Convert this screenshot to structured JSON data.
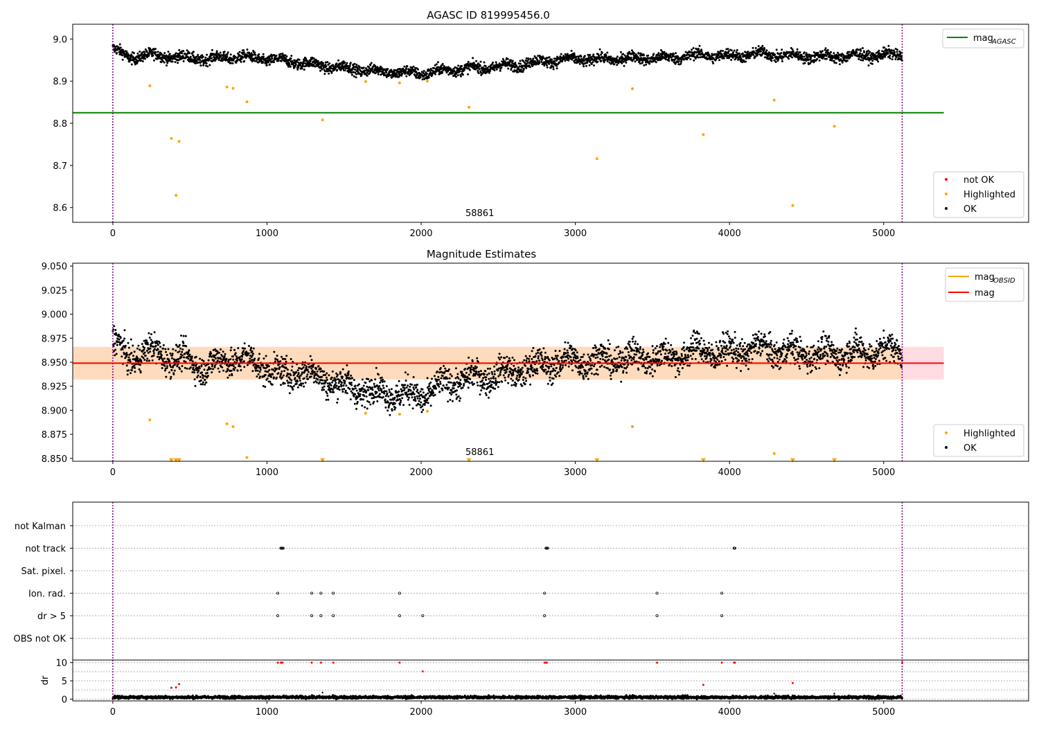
{
  "colors": {
    "ok": "#000000",
    "highlighted": "#ffa500",
    "not_ok": "#ff0000",
    "mag_agasc": "#008000",
    "mag_obsid": "#ffa500",
    "mag": "#ff0000",
    "band_red": "#ffc0cb",
    "band_orange": "#ffdab9",
    "obs_boundary": "#800080",
    "grid": "#b0b0b0"
  },
  "chart_data": [
    {
      "id": "agasc",
      "type": "scatter",
      "title": "AGASC ID 819995456.0",
      "xlim": [
        -260,
        5940
      ],
      "ylim": [
        8.565,
        9.035
      ],
      "xticks": [
        0,
        1000,
        2000,
        3000,
        4000,
        5000
      ],
      "xtick_labels": [
        "0",
        "1000",
        "2000",
        "3000",
        "4000",
        "5000"
      ],
      "yticks": [
        8.6,
        8.7,
        8.8,
        8.9,
        9.0
      ],
      "ytick_labels": [
        "8.6",
        "8.7",
        "8.8",
        "8.9",
        "9.0"
      ],
      "hline": {
        "name": "mag",
        "subscript": "AGASC",
        "y": 8.825,
        "x_range": [
          -260,
          5390
        ]
      },
      "obs_boundaries": [
        0,
        5120
      ],
      "obsid_annotation": {
        "text": "58861",
        "x": 2560
      },
      "ok_trend": {
        "x": [
          0,
          100,
          200,
          400,
          600,
          800,
          1000,
          1200,
          1400,
          1600,
          1800,
          2000,
          2200,
          2400,
          2600,
          2800,
          3000,
          3200,
          3400,
          3600,
          3800,
          4000,
          4200,
          4400,
          4600,
          4800,
          5000,
          5120
        ],
        "y": [
          8.978,
          8.955,
          8.962,
          8.958,
          8.952,
          8.958,
          8.952,
          8.945,
          8.935,
          8.928,
          8.922,
          8.918,
          8.928,
          8.932,
          8.938,
          8.948,
          8.952,
          8.952,
          8.955,
          8.955,
          8.962,
          8.96,
          8.965,
          8.96,
          8.958,
          8.96,
          8.962,
          8.962
        ],
        "count": 3200
      },
      "highlighted_points": {
        "x": [
          240,
          380,
          410,
          430,
          740,
          780,
          870,
          1360,
          1640,
          1860,
          2040,
          2310,
          3140,
          3370,
          3830,
          4290,
          4410,
          4680
        ],
        "y": [
          8.889,
          8.764,
          8.629,
          8.757,
          8.886,
          8.883,
          8.851,
          8.808,
          8.899,
          8.896,
          8.9,
          8.838,
          8.716,
          8.882,
          8.773,
          8.855,
          8.605,
          8.793
        ]
      },
      "legend_lines": [
        {
          "label": "mag",
          "subscript": "AGASC",
          "color": "#008000"
        }
      ],
      "legend_markers": [
        {
          "label": "not OK",
          "color": "#ff0000"
        },
        {
          "label": "Highlighted",
          "color": "#ffa500"
        },
        {
          "label": "OK",
          "color": "#000000"
        }
      ]
    },
    {
      "id": "mag_estimates",
      "type": "scatter",
      "title": "Magnitude Estimates",
      "xlim": [
        -260,
        5940
      ],
      "ylim": [
        8.847,
        9.053
      ],
      "xticks": [
        0,
        1000,
        2000,
        3000,
        4000,
        5000
      ],
      "xtick_labels": [
        "0",
        "1000",
        "2000",
        "3000",
        "4000",
        "5000"
      ],
      "yticks": [
        8.85,
        8.875,
        8.9,
        8.925,
        8.95,
        8.975,
        9.0,
        9.025,
        9.05
      ],
      "ytick_labels": [
        "8.850",
        "8.875",
        "8.900",
        "8.925",
        "8.950",
        "8.975",
        "9.000",
        "9.025",
        "9.050"
      ],
      "band_red": {
        "y": [
          8.932,
          8.966
        ],
        "x_range": [
          -260,
          5390
        ]
      },
      "band_orange": {
        "y": [
          8.932,
          8.966
        ],
        "x_range": [
          -260,
          5120
        ]
      },
      "hline_mag": {
        "y": 8.949,
        "x_range": [
          -260,
          5390
        ]
      },
      "hline_mag_obsid": {
        "y": 8.949,
        "x_range": [
          -260,
          5120
        ]
      },
      "obs_boundaries": [
        0,
        5120
      ],
      "obsid_annotation": {
        "text": "58861",
        "x": 2560
      },
      "ok_trend": {
        "x": [
          0,
          100,
          200,
          400,
          600,
          800,
          1000,
          1100,
          1200,
          1400,
          1500,
          1600,
          1800,
          2000,
          2200,
          2400,
          2600,
          2800,
          3000,
          3200,
          3400,
          3600,
          3800,
          4000,
          4200,
          4400,
          4600,
          4800,
          5000,
          5120
        ],
        "y": [
          8.975,
          8.952,
          8.962,
          8.955,
          8.945,
          8.955,
          8.945,
          8.935,
          8.942,
          8.932,
          8.925,
          8.922,
          8.918,
          8.915,
          8.93,
          8.935,
          8.94,
          8.948,
          8.952,
          8.952,
          8.955,
          8.955,
          8.962,
          8.96,
          8.965,
          8.96,
          8.958,
          8.96,
          8.962,
          8.962
        ],
        "count": 3200
      },
      "highlighted_points": {
        "x": [
          240,
          740,
          780,
          870,
          1640,
          1860,
          2040,
          3370,
          4290
        ],
        "y": [
          8.89,
          8.886,
          8.883,
          8.851,
          8.897,
          8.896,
          8.899,
          8.883,
          8.855
        ]
      },
      "floor_markers": {
        "x": [
          380,
          410,
          430,
          1360,
          2310,
          3140,
          3830,
          4410,
          4680
        ],
        "y": 8.848
      },
      "legend_lines": [
        {
          "label": "mag",
          "subscript": "OBSID",
          "color": "#ffa500"
        },
        {
          "label": "mag",
          "subscript": "",
          "color": "#ff0000"
        }
      ],
      "legend_markers": [
        {
          "label": "Highlighted",
          "color": "#ffa500"
        },
        {
          "label": "OK",
          "color": "#000000"
        }
      ]
    },
    {
      "id": "flags",
      "type": "scatter",
      "xlim": [
        -260,
        5940
      ],
      "categories": [
        "not Kalman",
        "not track",
        "Sat. pixel.",
        "Ion. rad.",
        "dr > 5",
        "OBS not OK"
      ],
      "obs_boundaries": [
        0,
        5120
      ],
      "flag_points": [
        {
          "category": "not track",
          "x": [
            1090,
            1095,
            1100,
            1105,
            2810,
            2815,
            2820,
            4030,
            4035
          ]
        },
        {
          "category": "Ion. rad.",
          "x": [
            1070,
            1290,
            1350,
            1430,
            1860,
            2800,
            3530,
            3950
          ]
        },
        {
          "category": "dr > 5",
          "x": [
            1070,
            1290,
            1350,
            1430,
            1860,
            2010,
            2800,
            3530,
            3950
          ]
        }
      ]
    },
    {
      "id": "dr",
      "type": "scatter",
      "xlim": [
        -260,
        5940
      ],
      "ylim": [
        -0.5,
        10.7
      ],
      "ylabel": "dr",
      "xticks": [
        0,
        1000,
        2000,
        3000,
        4000,
        5000
      ],
      "xtick_labels": [
        "0",
        "1000",
        "2000",
        "3000",
        "4000",
        "5000"
      ],
      "yticks": [
        0,
        5,
        10
      ],
      "ytick_labels": [
        "0",
        "5",
        "10"
      ],
      "obs_boundaries": [
        0,
        5120
      ],
      "ok_level": {
        "y": 0.5,
        "count": 3200
      },
      "not_ok_points": {
        "x": [
          380,
          410,
          430,
          1070,
          1090,
          1095,
          1100,
          1290,
          1350,
          1430,
          1860,
          2010,
          2800,
          2810,
          2815,
          3530,
          3830,
          3950,
          4030,
          4035,
          4410,
          5120
        ],
        "y": [
          3.1,
          3.2,
          4.1,
          10,
          10,
          10,
          10,
          10,
          10,
          10,
          10,
          7.6,
          10,
          10,
          10,
          10,
          3.9,
          10,
          10,
          10,
          4.4,
          10
        ]
      },
      "black_spikes": {
        "x": [
          1360,
          4290,
          4680
        ],
        "y": [
          1.8,
          1.5,
          1.5
        ]
      }
    }
  ]
}
